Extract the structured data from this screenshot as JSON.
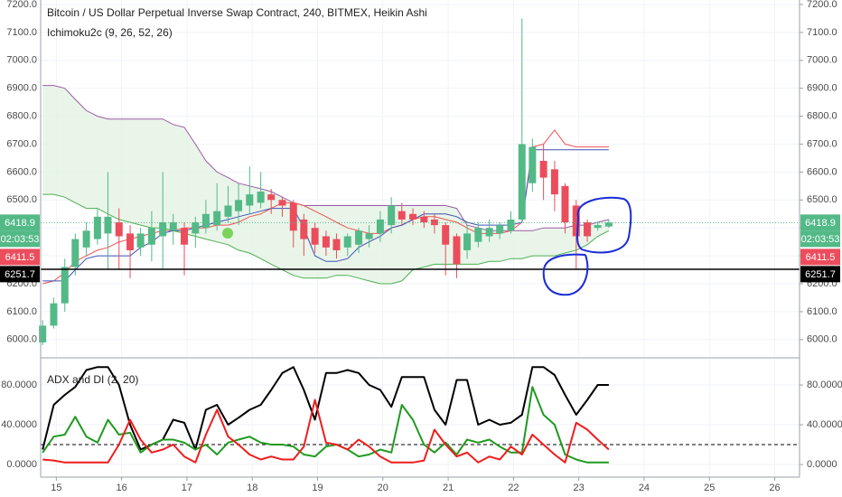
{
  "chart_data": [
    {
      "type": "candlestick",
      "title": "Bitcoin / US Dollar Perpetual Inverse Swap Contract, 240, BITMEX, Heikin Ashi",
      "subtitle": "Ichimoku2c (9, 26, 52, 26)",
      "x": [
        14.79,
        14.96,
        15.13,
        15.29,
        15.46,
        15.63,
        15.79,
        15.96,
        16.13,
        16.29,
        16.46,
        16.63,
        16.79,
        16.96,
        17.13,
        17.29,
        17.46,
        17.63,
        17.79,
        17.96,
        18.13,
        18.29,
        18.46,
        18.63,
        18.79,
        18.96,
        19.13,
        19.29,
        19.46,
        19.63,
        19.79,
        19.96,
        20.13,
        20.29,
        20.46,
        20.63,
        20.79,
        20.96,
        21.13,
        21.29,
        21.46,
        21.63,
        21.79,
        21.96,
        22.13,
        22.29,
        22.46,
        22.63,
        22.79,
        22.96,
        23.13,
        23.29,
        23.46
      ],
      "open": [
        5990,
        6050,
        6130,
        6260,
        6330,
        6360,
        6380,
        6420,
        6380,
        6330,
        6340,
        6370,
        6390,
        6400,
        6380,
        6400,
        6410,
        6440,
        6460,
        6480,
        6490,
        6520,
        6500,
        6490,
        6430,
        6400,
        6370,
        6360,
        6330,
        6340,
        6360,
        6380,
        6410,
        6460,
        6450,
        6440,
        6430,
        6410,
        6370,
        6320,
        6350,
        6370,
        6380,
        6390,
        6430,
        6560,
        6640,
        6610,
        6550,
        6480,
        6420,
        6400,
        6405
      ],
      "high": [
        6070,
        6150,
        6290,
        6380,
        6420,
        6470,
        6600,
        6470,
        6410,
        6400,
        6460,
        6600,
        6450,
        6420,
        6440,
        6500,
        6560,
        6550,
        6560,
        6620,
        6600,
        6540,
        6510,
        6500,
        6450,
        6420,
        6390,
        6380,
        6380,
        6400,
        6410,
        6460,
        6510,
        6490,
        6470,
        6460,
        6450,
        6420,
        6380,
        6410,
        6420,
        6430,
        6420,
        6460,
        7150,
        6720,
        6700,
        6640,
        6560,
        6500,
        6430,
        6420,
        6430
      ],
      "low": [
        5980,
        6040,
        6100,
        6230,
        6300,
        6340,
        6250,
        6250,
        6220,
        6300,
        6280,
        6250,
        6340,
        6230,
        6330,
        6380,
        6390,
        6420,
        6410,
        6450,
        6470,
        6450,
        6440,
        6330,
        6300,
        6310,
        6300,
        6290,
        6300,
        6310,
        6330,
        6350,
        6380,
        6410,
        6410,
        6400,
        6380,
        6230,
        6220,
        6290,
        6330,
        6350,
        6360,
        6380,
        6420,
        6530,
        6500,
        6460,
        6380,
        6250,
        6350,
        6390,
        6400
      ],
      "close": [
        6050,
        6130,
        6260,
        6360,
        6390,
        6440,
        6440,
        6370,
        6320,
        6380,
        6400,
        6420,
        6420,
        6340,
        6420,
        6450,
        6460,
        6480,
        6500,
        6520,
        6530,
        6500,
        6480,
        6390,
        6360,
        6340,
        6330,
        6320,
        6370,
        6390,
        6380,
        6430,
        6480,
        6430,
        6430,
        6420,
        6410,
        6340,
        6270,
        6380,
        6400,
        6400,
        6410,
        6430,
        6700,
        6690,
        6580,
        6520,
        6420,
        6370,
        6370,
        6410,
        6418.9
      ],
      "up_color": "#53b987",
      "down_color": "#eb4d5c",
      "series": [
        {
          "color": "#4caf50",
          "values": [
            6520,
            6520,
            6510,
            6490,
            6470,
            6470,
            6450,
            6430,
            6420,
            6410,
            6400,
            6400,
            6390,
            6380,
            6370,
            6360,
            6350,
            6340,
            6320,
            6310,
            6290,
            6270,
            6250,
            6230,
            6220,
            6220,
            6220,
            6230,
            6230,
            6220,
            6210,
            6200,
            6200,
            6210,
            6250,
            6260,
            6270,
            6270,
            6270,
            6270,
            6270,
            6280,
            6280,
            6290,
            6290,
            6300,
            6300,
            6300,
            6310,
            6320,
            6340,
            6370,
            6390
          ]
        },
        {
          "color": "#9c5ba6",
          "values": [
            6910,
            6910,
            6900,
            6860,
            6820,
            6800,
            6790,
            6790,
            6790,
            6790,
            6790,
            6790,
            6770,
            6760,
            6700,
            6640,
            6600,
            6580,
            6560,
            6550,
            6540,
            6530,
            6510,
            6490,
            6480,
            6480,
            6480,
            6480,
            6480,
            6480,
            6480,
            6480,
            6480,
            6480,
            6480,
            6480,
            6480,
            6480,
            6470,
            6410,
            6400,
            6390,
            6390,
            6390,
            6390,
            6390,
            6400,
            6400,
            6400,
            6410,
            6410,
            6420,
            6430
          ]
        },
        {
          "color": "#ef5350",
          "values": [
            6200,
            6210,
            6240,
            6280,
            6300,
            6320,
            6330,
            6350,
            6360,
            6370,
            6380,
            6390,
            6390,
            6400,
            6400,
            6400,
            6410,
            6410,
            6420,
            6440,
            6450,
            6470,
            6490,
            6490,
            6480,
            6460,
            6440,
            6420,
            6400,
            6390,
            6380,
            6380,
            6400,
            6410,
            6430,
            6440,
            6440,
            6430,
            6420,
            6400,
            6380,
            6380,
            6380,
            6390,
            6420,
            6690,
            6700,
            6750,
            6700,
            6690,
            6690,
            6690,
            6690
          ]
        },
        {
          "color": "#3f51b5",
          "values": [
            6210,
            6210,
            6210,
            6250,
            6290,
            6300,
            6300,
            6300,
            6300,
            6330,
            6350,
            6380,
            6390,
            6390,
            6400,
            6410,
            6420,
            6430,
            6440,
            6450,
            6460,
            6470,
            6470,
            6470,
            6400,
            6300,
            6280,
            6280,
            6290,
            6330,
            6350,
            6370,
            6400,
            6410,
            6430,
            6450,
            6450,
            6450,
            6440,
            6420,
            6410,
            6410,
            6410,
            6410,
            6420,
            6680,
            6680,
            6680,
            6680,
            6680,
            6680,
            6680,
            6680
          ]
        }
      ],
      "cloud_fill": "#e3f2e3",
      "markers": [
        {
          "value": 6418.9,
          "color": "#53b987",
          "line": "dotted"
        },
        {
          "value": 6411.5,
          "color": "#eb4d5c"
        },
        {
          "value": 6251.7,
          "color": "#000000",
          "line": "solid"
        }
      ],
      "countdown": "02:03:53",
      "xlim": [
        14.76,
        26.38
      ],
      "ylim": [
        5938,
        7216
      ],
      "yticks": [
        {
          "value": 6000,
          "label": "6000.0"
        },
        {
          "value": 6100,
          "label": "6100.0"
        },
        {
          "value": 6200,
          "label": "6200.0"
        },
        {
          "value": 6300,
          "label": "6300.0"
        },
        {
          "value": 6400,
          "label": "6400.0"
        },
        {
          "value": 6500,
          "label": "6500.0"
        },
        {
          "value": 6600,
          "label": "6600.0"
        },
        {
          "value": 6700,
          "label": "6700.0"
        },
        {
          "value": 6800,
          "label": "6800.0"
        },
        {
          "value": 6900,
          "label": "6900.0"
        },
        {
          "value": 7000,
          "label": "7000.0"
        },
        {
          "value": 7100,
          "label": "7100.0"
        },
        {
          "value": 7200,
          "label": "7200.0"
        }
      ],
      "grid": true
    },
    {
      "type": "line",
      "title": "ADX and DI (2, 20)",
      "x": [
        14.79,
        14.96,
        15.13,
        15.29,
        15.46,
        15.63,
        15.79,
        15.96,
        16.13,
        16.29,
        16.46,
        16.63,
        16.79,
        16.96,
        17.13,
        17.29,
        17.46,
        17.63,
        17.79,
        17.96,
        18.13,
        18.29,
        18.46,
        18.63,
        18.79,
        18.96,
        19.13,
        19.29,
        19.46,
        19.63,
        19.79,
        19.96,
        20.13,
        20.29,
        20.46,
        20.63,
        20.79,
        20.96,
        21.13,
        21.29,
        21.46,
        21.63,
        21.79,
        21.96,
        22.13,
        22.29,
        22.46,
        22.63,
        22.79,
        22.96,
        23.13,
        23.29,
        23.46
      ],
      "series": [
        {
          "color": "#000000",
          "values": [
            15,
            60,
            70,
            78,
            95,
            98,
            98,
            80,
            40,
            15,
            20,
            25,
            45,
            42,
            15,
            55,
            60,
            40,
            47,
            55,
            60,
            75,
            92,
            98,
            75,
            45,
            92,
            92,
            95,
            92,
            80,
            75,
            58,
            88,
            88,
            88,
            55,
            40,
            85,
            85,
            40,
            45,
            40,
            42,
            50,
            98,
            98,
            90,
            70,
            50,
            65,
            80,
            80
          ]
        },
        {
          "color": "#1f9a1f",
          "values": [
            12,
            28,
            30,
            48,
            28,
            22,
            45,
            30,
            32,
            12,
            20,
            25,
            25,
            22,
            15,
            20,
            10,
            22,
            25,
            28,
            22,
            20,
            20,
            18,
            10,
            8,
            18,
            20,
            15,
            8,
            10,
            15,
            12,
            60,
            45,
            20,
            12,
            22,
            10,
            25,
            22,
            25,
            18,
            12,
            12,
            78,
            50,
            40,
            10,
            5,
            2,
            2,
            2
          ]
        },
        {
          "color": "#f01d1d",
          "values": [
            5,
            4,
            2,
            2,
            2,
            2,
            2,
            20,
            45,
            25,
            12,
            15,
            20,
            8,
            2,
            30,
            55,
            28,
            20,
            10,
            5,
            8,
            5,
            5,
            18,
            65,
            22,
            20,
            15,
            25,
            18,
            8,
            2,
            2,
            2,
            4,
            35,
            20,
            8,
            12,
            2,
            8,
            5,
            18,
            10,
            30,
            20,
            10,
            2,
            42,
            35,
            25,
            15
          ]
        }
      ],
      "hline": 20,
      "xlim": [
        14.76,
        26.38
      ],
      "xticks": [
        15,
        16,
        17,
        18,
        19,
        20,
        21,
        22,
        23,
        24,
        25,
        26
      ],
      "ylim": [
        -12.7,
        105.5
      ],
      "yticks": [
        {
          "value": 0,
          "label": "0.0000"
        },
        {
          "value": 40,
          "label": "40.0000"
        },
        {
          "value": 80,
          "label": "80.0000"
        }
      ],
      "grid": true
    }
  ]
}
